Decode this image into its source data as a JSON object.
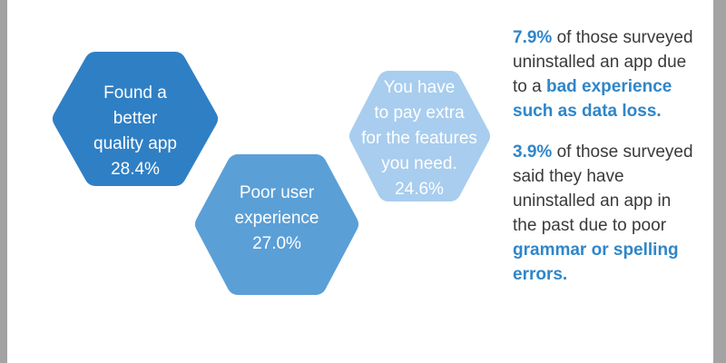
{
  "hexagons": [
    {
      "lines": [
        "Found a",
        "better",
        "quality app"
      ],
      "value": "28.4%",
      "color": "#2f7fc5"
    },
    {
      "lines": [
        "Poor user",
        "experience"
      ],
      "value": "27.0%",
      "color": "#5b9fd7"
    },
    {
      "lines": [
        "You have",
        "to pay extra",
        "for the features",
        "you need."
      ],
      "value": "24.6%",
      "color": "#a8cdee"
    }
  ],
  "facts": [
    [
      {
        "text": "7.9%",
        "bold": true
      },
      {
        "text": " of those surveyed uninstalled an app due to a "
      },
      {
        "text": "bad experience such as data loss.",
        "bold": true
      }
    ],
    [
      {
        "text": "3.9%",
        "bold": true
      },
      {
        "text": " of those surveyed said they have uninstalled an app in the past due to poor "
      },
      {
        "text": "grammar or spelling errors.",
        "bold": true
      }
    ]
  ]
}
